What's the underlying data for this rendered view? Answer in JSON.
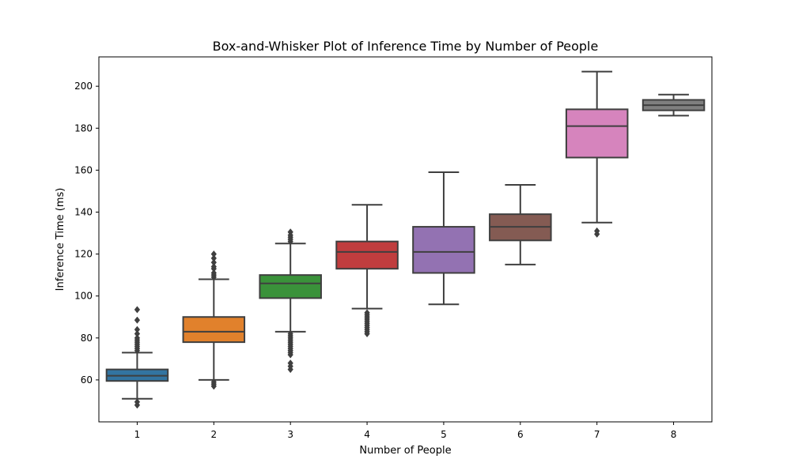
{
  "chart_data": {
    "type": "box",
    "title": "Box-and-Whisker Plot of Inference Time by Number of People",
    "xlabel": "Number of People",
    "ylabel": "Inference Time (ms)",
    "ylim": [
      40,
      214
    ],
    "yticks": [
      60,
      80,
      100,
      120,
      140,
      160,
      180,
      200
    ],
    "grid": false,
    "categories": [
      "1",
      "2",
      "3",
      "4",
      "5",
      "6",
      "7",
      "8"
    ],
    "boxes": [
      {
        "category": "1",
        "color": "#3274a1",
        "whisker_low": 51,
        "q1": 59.5,
        "median": 62,
        "q3": 65,
        "whisker_high": 73,
        "outliers": [
          48,
          49.5,
          74,
          75,
          76,
          77,
          78,
          79,
          80,
          82,
          84,
          88.5,
          93.5
        ]
      },
      {
        "category": "2",
        "color": "#e1812c",
        "whisker_low": 60,
        "q1": 78,
        "median": 83,
        "q3": 90,
        "whisker_high": 108,
        "outliers": [
          57,
          58,
          59,
          109,
          110,
          111,
          113,
          114,
          116,
          118,
          120
        ]
      },
      {
        "category": "3",
        "color": "#3a923a",
        "whisker_low": 83,
        "q1": 99,
        "median": 106,
        "q3": 110,
        "whisker_high": 125,
        "outliers": [
          65,
          66.5,
          68,
          72,
          73,
          74,
          75,
          76,
          77,
          78,
          79,
          80,
          81,
          82,
          126,
          127,
          128,
          129,
          130.5
        ]
      },
      {
        "category": "4",
        "color": "#c03d3e",
        "whisker_low": 94,
        "q1": 113,
        "median": 121,
        "q3": 126,
        "whisker_high": 143.5,
        "outliers": [
          82,
          83,
          84,
          85,
          86,
          87,
          88,
          89,
          90,
          91,
          92
        ]
      },
      {
        "category": "5",
        "color": "#9372b2",
        "whisker_low": 96,
        "q1": 111,
        "median": 121,
        "q3": 133,
        "whisker_high": 159,
        "outliers": []
      },
      {
        "category": "6",
        "color": "#845b53",
        "whisker_low": 115,
        "q1": 126.5,
        "median": 133,
        "q3": 139,
        "whisker_high": 153,
        "outliers": []
      },
      {
        "category": "7",
        "color": "#d684bd",
        "whisker_low": 135,
        "q1": 166,
        "median": 181,
        "q3": 189,
        "whisker_high": 207,
        "outliers": [
          129.5,
          131
        ]
      },
      {
        "category": "8",
        "color": "#7f7f7f",
        "whisker_low": 186,
        "q1": 188.5,
        "median": 191,
        "q3": 193.5,
        "whisker_high": 196,
        "outliers": []
      }
    ]
  }
}
